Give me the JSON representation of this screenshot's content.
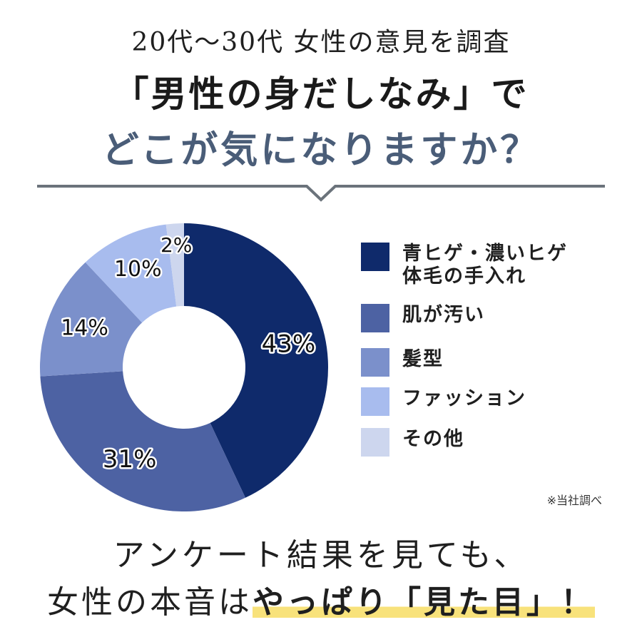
{
  "header": {
    "subtitle": "20代～30代 女性の意見を調査",
    "headline_line1": "「男性の身だしなみ」で",
    "headline_line2": "どこが気になりますか？"
  },
  "colors": {
    "accent_heading": "#4a5d78",
    "divider": "#6b737b",
    "highlight": "#f8e27b"
  },
  "chart_data": {
    "type": "pie",
    "donut": true,
    "categories": [
      "青ヒゲ・濃いヒゲ\n体毛の手入れ",
      "肌が汚い",
      "髪型",
      "ファッション",
      "その他"
    ],
    "values": [
      43,
      31,
      14,
      10,
      2
    ],
    "value_labels": [
      "43%",
      "31%",
      "14%",
      "10%",
      "2%"
    ],
    "colors": [
      "#0f2a6b",
      "#4d62a3",
      "#7b90cb",
      "#a8bcee",
      "#cdd6ee"
    ],
    "legend_position": "right",
    "start_angle_deg": 0,
    "direction": "clockwise"
  },
  "legend": {
    "items": [
      {
        "label_line1": "青ヒゲ・濃いヒゲ",
        "label_line2": "体毛の手入れ"
      },
      {
        "label_line1": "肌が汚い",
        "label_line2": ""
      },
      {
        "label_line1": "髪型",
        "label_line2": ""
      },
      {
        "label_line1": "ファッション",
        "label_line2": ""
      },
      {
        "label_line1": "その他",
        "label_line2": ""
      }
    ]
  },
  "note": "※当社調べ",
  "footer": {
    "line1": "アンケート結果を見ても、",
    "line2_prefix": "女性の本音は",
    "line2_emphasis": "やっぱり「見た目」！"
  }
}
